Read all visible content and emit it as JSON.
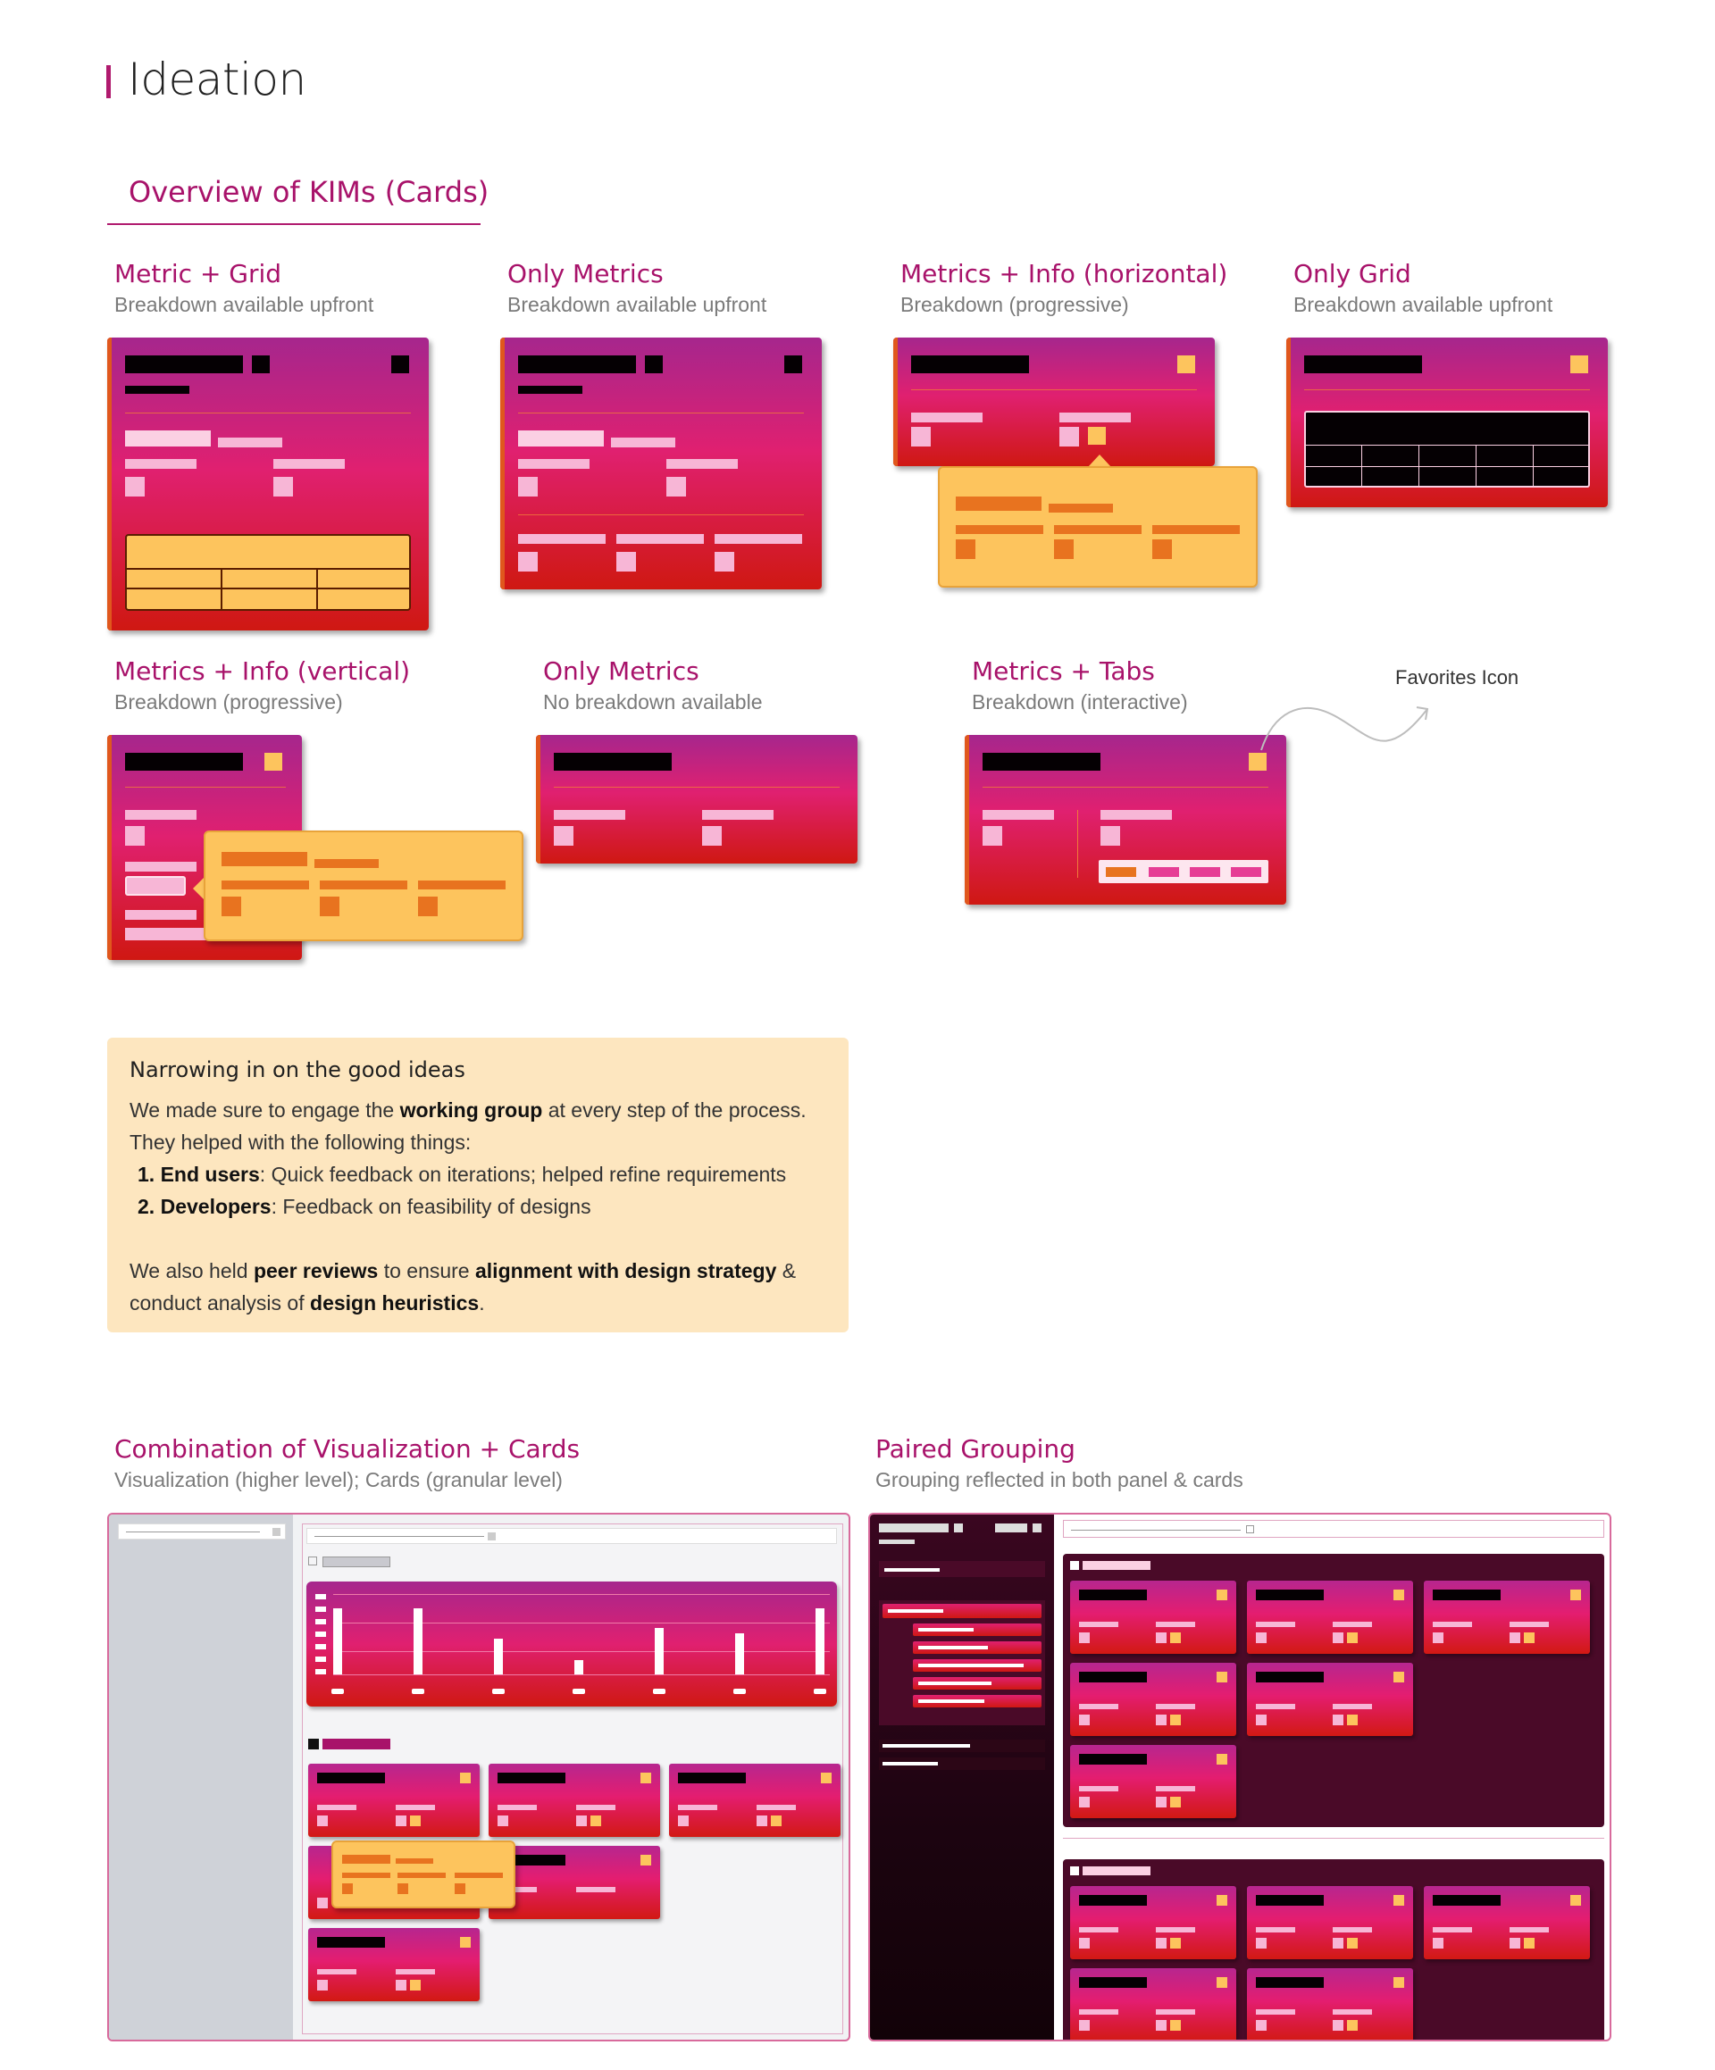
{
  "page": {
    "title": "Ideation"
  },
  "overview": {
    "title": "Overview of KIMs (Cards)"
  },
  "cards": [
    {
      "title": "Metric + Grid",
      "subtitle": "Breakdown available upfront"
    },
    {
      "title": "Only Metrics",
      "subtitle": "Breakdown available upfront"
    },
    {
      "title": "Metrics + Info (horizontal)",
      "subtitle": "Breakdown (progressive)"
    },
    {
      "title": "Only Grid",
      "subtitle": "Breakdown available upfront"
    },
    {
      "title": "Metrics + Info (vertical)",
      "subtitle": "Breakdown (progressive)"
    },
    {
      "title": "Only Metrics",
      "subtitle": "No breakdown available"
    },
    {
      "title": "Metrics + Tabs",
      "subtitle": "Breakdown (interactive)"
    }
  ],
  "annotation": {
    "favorites": "Favorites Icon"
  },
  "note": {
    "heading": "Narrowing in on the good ideas",
    "line1_a": "We made sure to engage the ",
    "line1_b": "working group",
    "line1_c": " at every step of the process.",
    "line2": "They helped with the following things:",
    "item1_num": "1.",
    "item1_b": "End users",
    "item1_c": ": Quick feedback on iterations; helped refine requirements",
    "item2_num": "2.",
    "item2_b": "Developers",
    "item2_c": ": Feedback on feasibility of designs",
    "line3_a": "We also held ",
    "line3_b": "peer reviews",
    "line3_c": " to ensure ",
    "line3_d": "alignment with design strategy",
    "line3_e": " &",
    "line4_a": "conduct analysis of ",
    "line4_b": "design heuristics",
    "line4_c": "."
  },
  "bottom": [
    {
      "title": "Combination of Visualization + Cards",
      "subtitle": "Visualization (higher level); Cards (granular level)"
    },
    {
      "title": "Paired Grouping",
      "subtitle": "Grouping reflected in both panel & cards"
    }
  ],
  "colors": {
    "accent": "#a8126a",
    "card_top": "#a6268d",
    "card_mid": "#e02070",
    "card_bottom": "#cf1812",
    "gold": "#fdc45d",
    "note_bg": "#fde6bf"
  }
}
